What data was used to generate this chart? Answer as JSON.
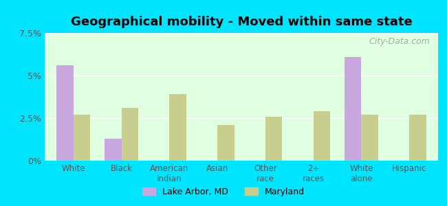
{
  "title": "Geographical mobility - Moved within same state",
  "categories": [
    "White",
    "Black",
    "American\nIndian",
    "Asian",
    "Other\nrace",
    "2+\nraces",
    "White\nalone",
    "Hispanic"
  ],
  "lake_arbor_values": [
    5.6,
    1.3,
    0,
    0,
    0,
    0,
    6.1,
    0
  ],
  "maryland_values": [
    2.7,
    3.1,
    3.9,
    2.1,
    2.6,
    2.9,
    2.7,
    2.7
  ],
  "lake_arbor_color": "#c9a8e0",
  "maryland_color": "#c8cf8e",
  "background_color": "#e0ffe0",
  "outer_background": "#00e5ff",
  "ylim": [
    0,
    7.5
  ],
  "yticks": [
    0,
    2.5,
    5.0,
    7.5
  ],
  "ytick_labels": [
    "0%",
    "2.5%",
    "5%",
    "7.5%"
  ],
  "legend_lake_arbor": "Lake Arbor, MD",
  "legend_maryland": "Maryland",
  "watermark": "City-Data.com",
  "bar_width": 0.35
}
